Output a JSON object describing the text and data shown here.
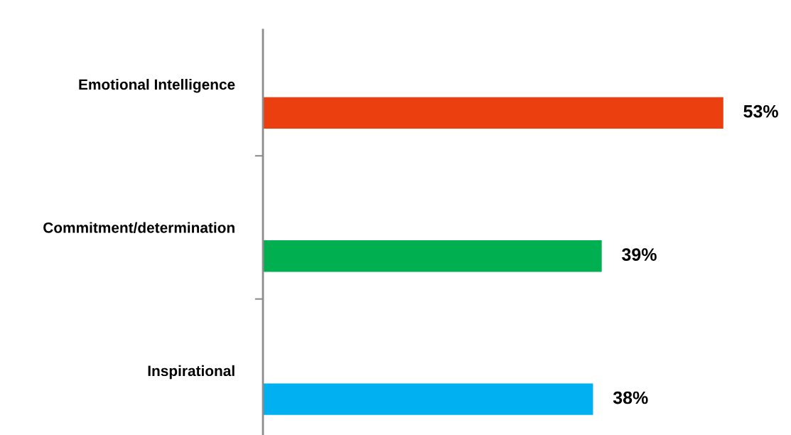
{
  "chart_data": {
    "type": "bar",
    "orientation": "horizontal",
    "categories": [
      "Emotional Intelligence",
      "Commitment/determination",
      "Inspirational"
    ],
    "values": [
      53,
      39,
      38
    ],
    "colors": [
      "#ec3f0f",
      "#00b050",
      "#00b0f0"
    ],
    "value_labels": [
      "53%",
      "39%",
      "38%"
    ],
    "grid": false,
    "legend": false
  }
}
